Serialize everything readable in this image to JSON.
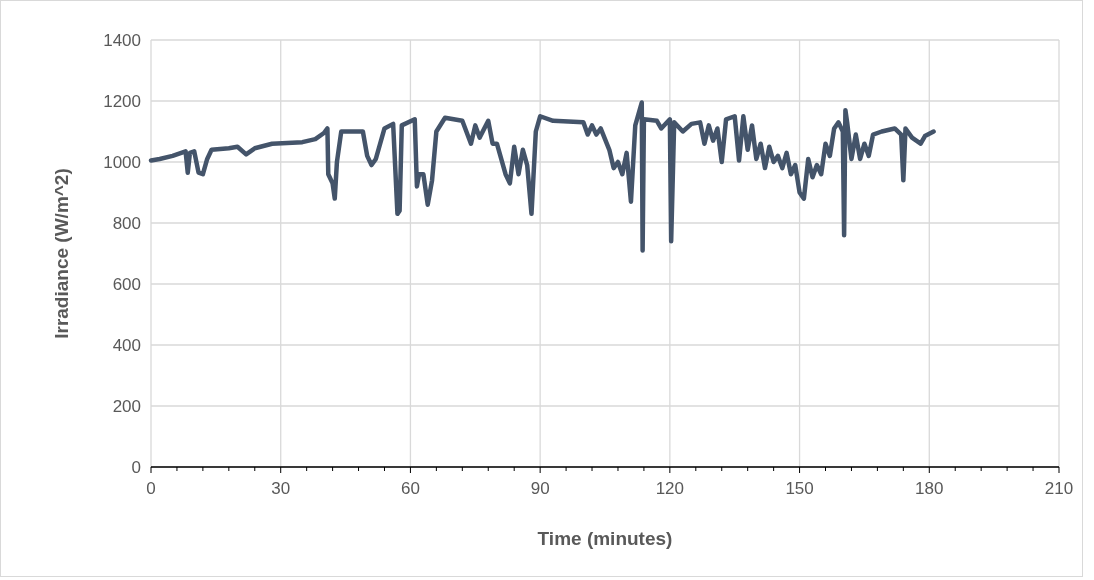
{
  "chart_data": {
    "type": "line",
    "xlabel": "Time (minutes)",
    "ylabel": "Irradiance (W/m^2)",
    "xlim": [
      0,
      210
    ],
    "xticks": [
      0,
      30,
      60,
      90,
      120,
      150,
      180,
      210
    ],
    "ylim": [
      0,
      1400
    ],
    "yticks": [
      0,
      200,
      400,
      600,
      800,
      1000,
      1200,
      1400
    ],
    "grid": true,
    "marker": "none",
    "line_style": "solid",
    "series": [
      {
        "color": "#44546a",
        "x": [
          0,
          2,
          5,
          8,
          8.5,
          9,
          10,
          11,
          12,
          13,
          14,
          18,
          20,
          22,
          24,
          28,
          35,
          38,
          40,
          40.8,
          41,
          42,
          42.5,
          43,
          44,
          48,
          49,
          50,
          51,
          52,
          54,
          56,
          57,
          57.5,
          58,
          61,
          61.5,
          62,
          63,
          64,
          65,
          66,
          68,
          72,
          74,
          75,
          76,
          78,
          79,
          80,
          82,
          83,
          84,
          85,
          86,
          87,
          88,
          89,
          90,
          93,
          100,
          101,
          102,
          103,
          104,
          106,
          107,
          108,
          109,
          110,
          111,
          112,
          113.5,
          113.7,
          114,
          117,
          118,
          120,
          120.3,
          121,
          123,
          125,
          127,
          128,
          129,
          130,
          131,
          132,
          133,
          135,
          136,
          137,
          138,
          139,
          140,
          141,
          142,
          143,
          144,
          145,
          146,
          147,
          148,
          149,
          150,
          151,
          152,
          153,
          154,
          155,
          156,
          157,
          158,
          159,
          160,
          160.3,
          160.6,
          161,
          162,
          163,
          164,
          165,
          166,
          167,
          169,
          172,
          173.5,
          174,
          174.5,
          176,
          178,
          179,
          181
        ],
        "values": [
          1005,
          1010,
          1020,
          1035,
          965,
          1030,
          1035,
          965,
          960,
          1010,
          1040,
          1045,
          1050,
          1025,
          1045,
          1060,
          1065,
          1075,
          1095,
          1110,
          960,
          930,
          880,
          1000,
          1100,
          1100,
          1100,
          1020,
          990,
          1010,
          1110,
          1125,
          830,
          840,
          1120,
          1140,
          920,
          960,
          960,
          860,
          940,
          1100,
          1145,
          1135,
          1060,
          1120,
          1080,
          1135,
          1060,
          1060,
          960,
          930,
          1050,
          960,
          1040,
          990,
          830,
          1100,
          1150,
          1135,
          1130,
          1090,
          1120,
          1090,
          1110,
          1040,
          980,
          1000,
          960,
          1030,
          870,
          1120,
          1195,
          710,
          1140,
          1135,
          1110,
          1140,
          740,
          1130,
          1100,
          1125,
          1130,
          1060,
          1120,
          1070,
          1110,
          1000,
          1140,
          1150,
          1005,
          1150,
          1040,
          1120,
          1010,
          1060,
          980,
          1050,
          1000,
          1020,
          980,
          1030,
          960,
          990,
          900,
          880,
          1010,
          950,
          990,
          960,
          1060,
          1020,
          1110,
          1130,
          1100,
          760,
          1170,
          1130,
          1010,
          1090,
          1010,
          1060,
          1020,
          1090,
          1100,
          1110,
          1090,
          940,
          1110,
          1080,
          1060,
          1085,
          1100
        ]
      }
    ]
  }
}
